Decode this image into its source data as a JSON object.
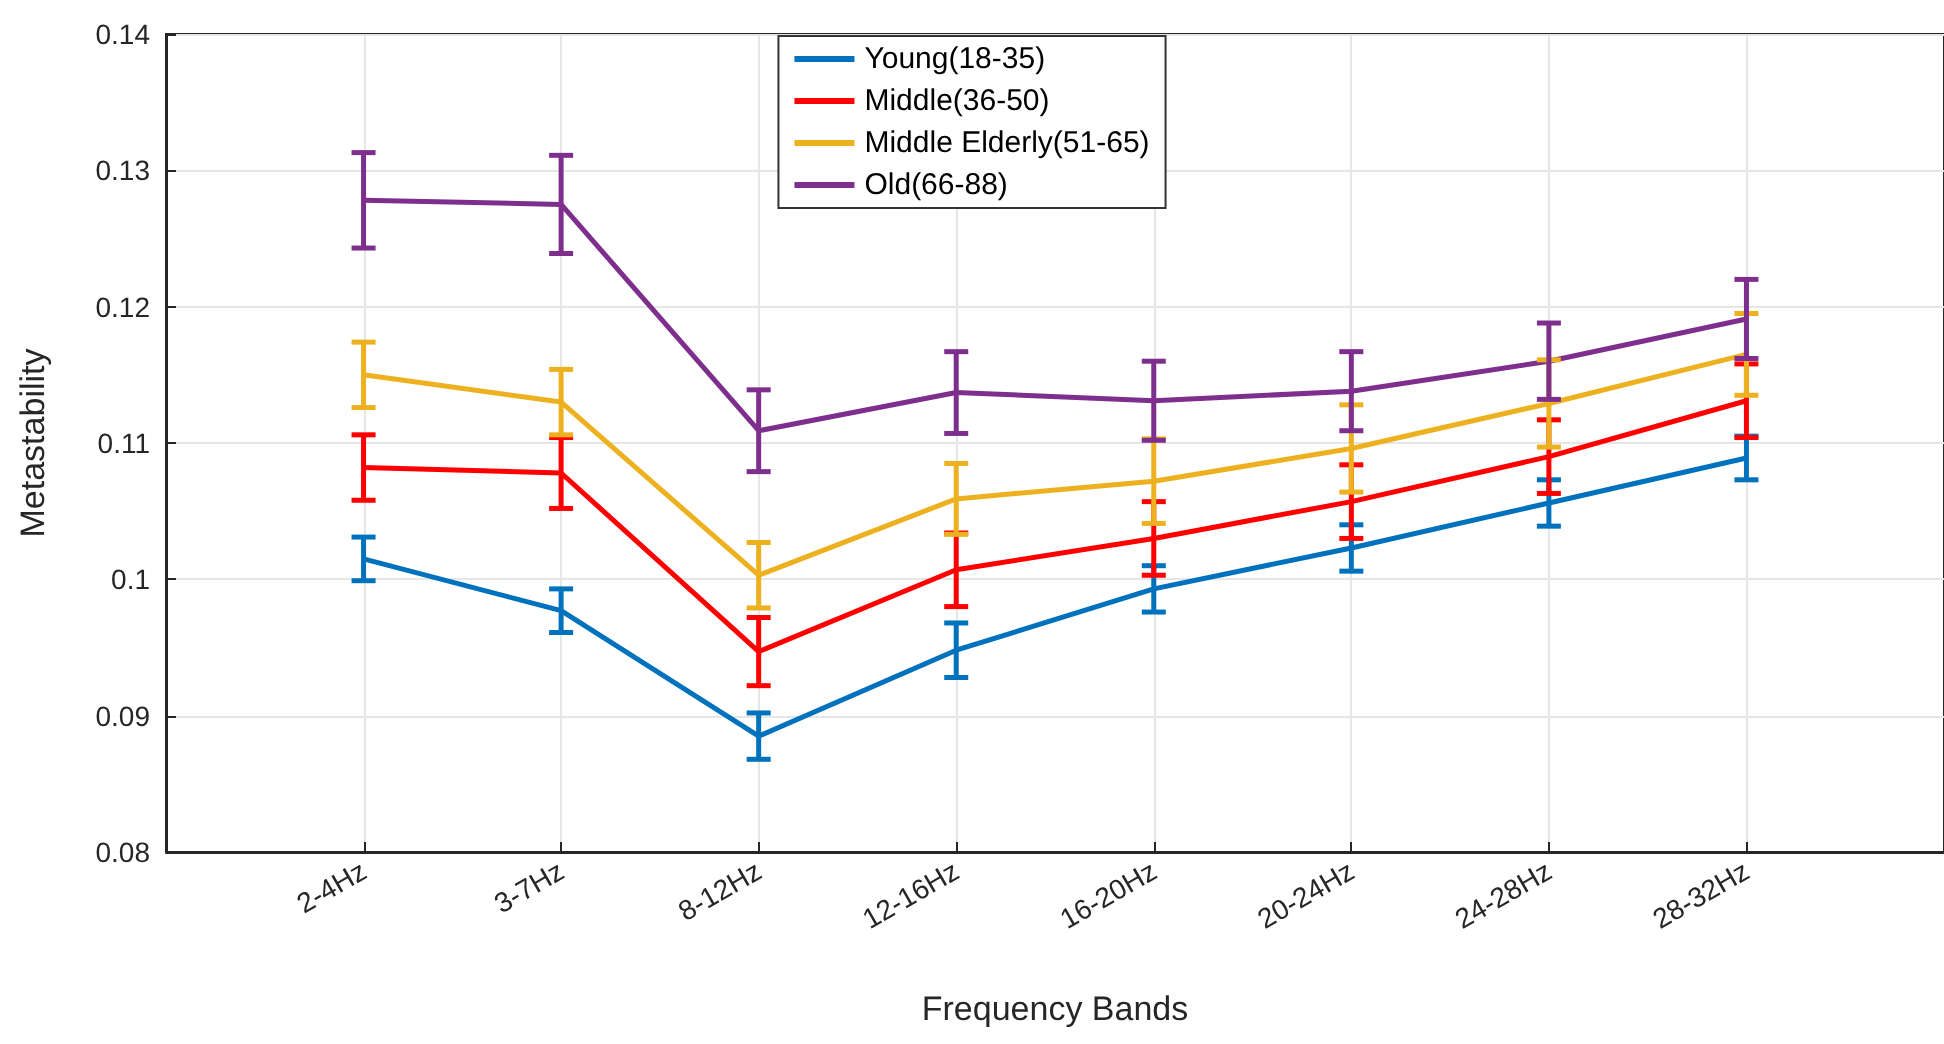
{
  "chart_data": {
    "type": "line",
    "xlabel": "Frequency Bands",
    "ylabel": "Metastability",
    "categories": [
      "2-4Hz",
      "3-7Hz",
      "8-12Hz",
      "12-16Hz",
      "16-20Hz",
      "20-24Hz",
      "24-28Hz",
      "28-32Hz"
    ],
    "series": [
      {
        "name": "Young(18-35)",
        "color": "#0072bd",
        "values": [
          0.1015,
          0.0977,
          0.0885,
          0.0948,
          0.0993,
          0.1023,
          0.1056,
          0.1089
        ],
        "errors": [
          0.0016,
          0.0016,
          0.0017,
          0.002,
          0.0017,
          0.0017,
          0.0017,
          0.0016
        ]
      },
      {
        "name": "Middle(36-50)",
        "color": "#ff0000",
        "values": [
          0.1082,
          0.1078,
          0.0947,
          0.1007,
          0.103,
          0.1057,
          0.109,
          0.1131
        ],
        "errors": [
          0.0024,
          0.0026,
          0.0025,
          0.0027,
          0.0027,
          0.0027,
          0.0027,
          0.0027
        ]
      },
      {
        "name": "Middle Elderly(51-65)",
        "color": "#edb120",
        "values": [
          0.115,
          0.113,
          0.1003,
          0.1059,
          0.1072,
          0.1096,
          0.1129,
          0.1165
        ],
        "errors": [
          0.0024,
          0.0024,
          0.0024,
          0.0026,
          0.0031,
          0.0032,
          0.0032,
          0.003
        ]
      },
      {
        "name": "Old(66-88)",
        "color": "#7e2f8e",
        "values": [
          0.1278,
          0.1275,
          0.1109,
          0.1137,
          0.1131,
          0.1138,
          0.116,
          0.1191
        ],
        "errors": [
          0.0035,
          0.0036,
          0.003,
          0.003,
          0.0029,
          0.0029,
          0.0028,
          0.0029
        ]
      }
    ],
    "ylim": [
      0.08,
      0.14
    ],
    "yticks": [
      0.08,
      0.09,
      0.1,
      0.11,
      0.12,
      0.13,
      0.14
    ],
    "grid": true,
    "legend": "top",
    "marker": "none",
    "line_style": "solid"
  }
}
